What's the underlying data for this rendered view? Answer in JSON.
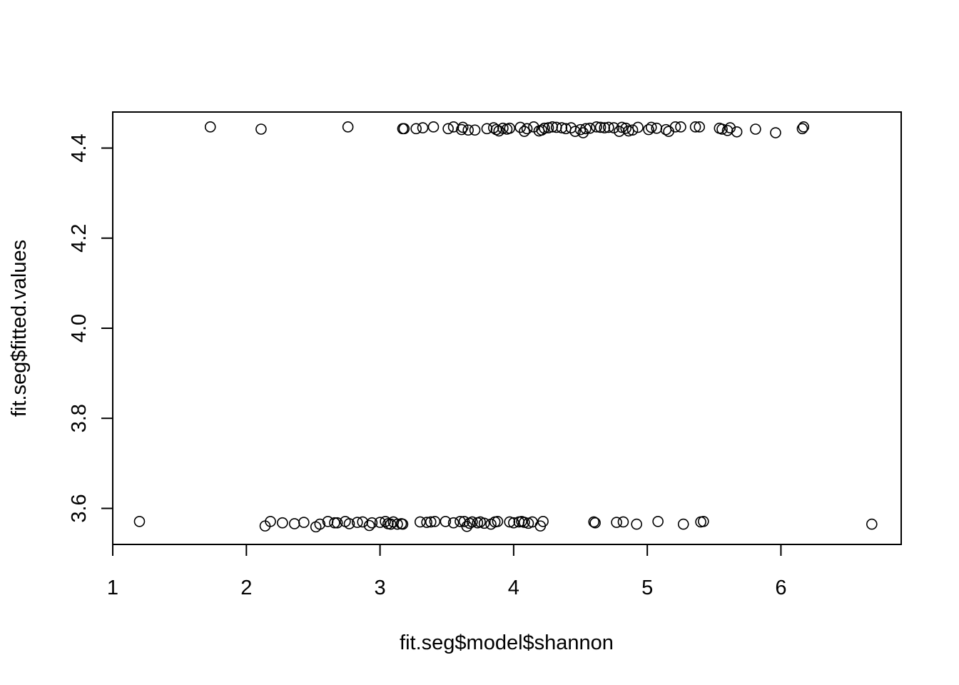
{
  "chart_data": {
    "type": "scatter",
    "xlabel": "fit.seg$model$shannon",
    "ylabel": "fit.seg$fitted.values",
    "xlim": [
      1,
      6.9
    ],
    "ylim": [
      3.52,
      4.48
    ],
    "xticks": [
      1,
      2,
      3,
      4,
      5,
      6
    ],
    "yticks": [
      3.6,
      3.8,
      4.0,
      4.2,
      4.4
    ],
    "xtick_labels": [
      "1",
      "2",
      "3",
      "4",
      "5",
      "6"
    ],
    "ytick_labels": [
      "3.6",
      "3.8",
      "4.0",
      "4.2",
      "4.4"
    ],
    "marker": "open-circle",
    "grid": false,
    "series": [
      {
        "points": [
          [
            1.2,
            3.571
          ],
          [
            2.14,
            3.561
          ],
          [
            2.18,
            3.571
          ],
          [
            2.27,
            3.568
          ],
          [
            2.36,
            3.566
          ],
          [
            2.43,
            3.569
          ],
          [
            2.52,
            3.559
          ],
          [
            2.55,
            3.565
          ],
          [
            2.61,
            3.571
          ],
          [
            2.66,
            3.568
          ],
          [
            2.68,
            3.568
          ],
          [
            2.74,
            3.571
          ],
          [
            2.77,
            3.566
          ],
          [
            2.83,
            3.569
          ],
          [
            2.87,
            3.57
          ],
          [
            2.92,
            3.562
          ],
          [
            2.94,
            3.568
          ],
          [
            3.0,
            3.569
          ],
          [
            3.04,
            3.571
          ],
          [
            3.06,
            3.566
          ],
          [
            3.08,
            3.565
          ],
          [
            3.1,
            3.57
          ],
          [
            3.13,
            3.565
          ],
          [
            3.16,
            3.566
          ],
          [
            3.17,
            3.565
          ],
          [
            3.3,
            3.57
          ],
          [
            3.35,
            3.569
          ],
          [
            3.38,
            3.57
          ],
          [
            3.41,
            3.571
          ],
          [
            3.49,
            3.571
          ],
          [
            3.55,
            3.568
          ],
          [
            3.6,
            3.571
          ],
          [
            3.63,
            3.571
          ],
          [
            3.65,
            3.56
          ],
          [
            3.67,
            3.567
          ],
          [
            3.69,
            3.57
          ],
          [
            3.73,
            3.568
          ],
          [
            3.75,
            3.57
          ],
          [
            3.78,
            3.567
          ],
          [
            3.83,
            3.565
          ],
          [
            3.86,
            3.57
          ],
          [
            3.88,
            3.571
          ],
          [
            3.97,
            3.57
          ],
          [
            4.0,
            3.568
          ],
          [
            4.04,
            3.57
          ],
          [
            4.06,
            3.571
          ],
          [
            4.08,
            3.569
          ],
          [
            4.11,
            3.567
          ],
          [
            4.14,
            3.57
          ],
          [
            4.2,
            3.561
          ],
          [
            4.22,
            3.571
          ],
          [
            4.6,
            3.57
          ],
          [
            4.61,
            3.568
          ],
          [
            4.77,
            3.569
          ],
          [
            4.82,
            3.57
          ],
          [
            4.92,
            3.565
          ],
          [
            5.08,
            3.571
          ],
          [
            5.27,
            3.565
          ],
          [
            5.4,
            3.57
          ],
          [
            5.42,
            3.571
          ],
          [
            6.68,
            3.565
          ],
          [
            1.73,
            4.447
          ],
          [
            2.11,
            4.442
          ],
          [
            2.76,
            4.447
          ],
          [
            3.17,
            4.443
          ],
          [
            3.18,
            4.443
          ],
          [
            3.27,
            4.443
          ],
          [
            3.32,
            4.445
          ],
          [
            3.4,
            4.447
          ],
          [
            3.51,
            4.443
          ],
          [
            3.55,
            4.447
          ],
          [
            3.61,
            4.441
          ],
          [
            3.62,
            4.446
          ],
          [
            3.66,
            4.44
          ],
          [
            3.71,
            4.44
          ],
          [
            3.8,
            4.443
          ],
          [
            3.85,
            4.445
          ],
          [
            3.87,
            4.441
          ],
          [
            3.89,
            4.438
          ],
          [
            3.92,
            4.444
          ],
          [
            3.95,
            4.442
          ],
          [
            3.97,
            4.444
          ],
          [
            4.05,
            4.446
          ],
          [
            4.08,
            4.437
          ],
          [
            4.1,
            4.443
          ],
          [
            4.15,
            4.447
          ],
          [
            4.19,
            4.438
          ],
          [
            4.21,
            4.44
          ],
          [
            4.23,
            4.444
          ],
          [
            4.26,
            4.445
          ],
          [
            4.29,
            4.447
          ],
          [
            4.32,
            4.446
          ],
          [
            4.36,
            4.445
          ],
          [
            4.39,
            4.443
          ],
          [
            4.43,
            4.445
          ],
          [
            4.46,
            4.437
          ],
          [
            4.5,
            4.441
          ],
          [
            4.52,
            4.434
          ],
          [
            4.54,
            4.443
          ],
          [
            4.57,
            4.444
          ],
          [
            4.62,
            4.447
          ],
          [
            4.65,
            4.446
          ],
          [
            4.68,
            4.445
          ],
          [
            4.71,
            4.446
          ],
          [
            4.75,
            4.445
          ],
          [
            4.79,
            4.437
          ],
          [
            4.81,
            4.446
          ],
          [
            4.84,
            4.444
          ],
          [
            4.86,
            4.438
          ],
          [
            4.89,
            4.44
          ],
          [
            4.93,
            4.446
          ],
          [
            5.01,
            4.441
          ],
          [
            5.03,
            4.446
          ],
          [
            5.07,
            4.444
          ],
          [
            5.14,
            4.441
          ],
          [
            5.16,
            4.437
          ],
          [
            5.21,
            4.447
          ],
          [
            5.25,
            4.447
          ],
          [
            5.36,
            4.447
          ],
          [
            5.39,
            4.447
          ],
          [
            5.54,
            4.444
          ],
          [
            5.56,
            4.442
          ],
          [
            5.6,
            4.439
          ],
          [
            5.62,
            4.445
          ],
          [
            5.67,
            4.436
          ],
          [
            5.81,
            4.442
          ],
          [
            5.96,
            4.434
          ],
          [
            6.16,
            4.443
          ],
          [
            6.17,
            4.447
          ]
        ]
      }
    ]
  }
}
